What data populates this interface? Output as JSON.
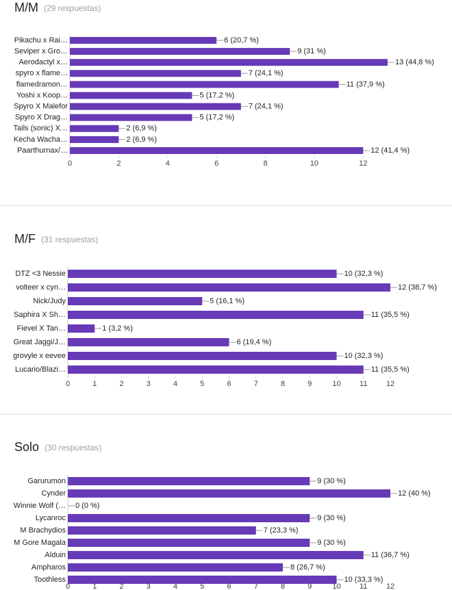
{
  "chart_data": [
    {
      "type": "barh",
      "title": "M/M",
      "subtitle": "(29 respuestas)",
      "categories": [
        "Pikachu x Rai…",
        "Seviper x Gro…",
        "Aerodactyl x…",
        "spyro x flame…",
        "flamedramon…",
        "Yoshi x Koop…",
        "Spyro X Malefor",
        "Spyro X Drag…",
        "Tails (sonic) X…",
        "Kecha Wacha…",
        "Paarthurnax/…"
      ],
      "values": [
        6,
        9,
        13,
        7,
        11,
        5,
        7,
        5,
        2,
        2,
        12
      ],
      "value_labels": [
        "6 (20,7 %)",
        "9 (31 %)",
        "13 (44,8 %)",
        "7 (24,1 %)",
        "11 (37,9 %)",
        "5 (17,2 %)",
        "7 (24,1 %)",
        "5 (17,2 %)",
        "2 (6,9 %)",
        "2 (6,9 %)",
        "12 (41,4 %)"
      ],
      "color": "#673ab7",
      "xlim": [
        0,
        13
      ],
      "xticks": [
        0,
        2,
        4,
        6,
        8,
        10,
        12
      ]
    },
    {
      "type": "barh",
      "title": "M/F",
      "subtitle": "(31 respuestas)",
      "categories": [
        "DTZ <3 Nessie",
        "volteer x cyn…",
        "Nick/Judy",
        "Saphira X Sh…",
        "Fievel X Tan…",
        "Great Jaggi/J…",
        "grovyle x eevee",
        "Lucario/Blazi…"
      ],
      "values": [
        10,
        12,
        5,
        11,
        1,
        6,
        10,
        11
      ],
      "value_labels": [
        "10 (32,3 %)",
        "12 (38,7 %)",
        "5 (16,1 %)",
        "11 (35,5 %)",
        "1 (3,2 %)",
        "6 (19,4 %)",
        "10 (32,3 %)",
        "11 (35,5 %)"
      ],
      "color": "#673ab7",
      "xlim": [
        0,
        12
      ],
      "xticks": [
        0,
        1,
        2,
        3,
        4,
        5,
        6,
        7,
        8,
        9,
        10,
        11,
        12
      ]
    },
    {
      "type": "barh",
      "title": "Solo",
      "subtitle": "(30 respuestas)",
      "categories": [
        "Garurumon",
        "Cynder",
        "Winnie Wolf (…",
        "Lycanroc",
        "M Brachydios",
        "M Gore Magala",
        "Alduin",
        "Ampharos",
        "Toothless"
      ],
      "values": [
        9,
        12,
        0,
        9,
        7,
        9,
        11,
        8,
        10
      ],
      "value_labels": [
        "9 (30 %)",
        "12 (40 %)",
        "0 (0 %)",
        "9 (30 %)",
        "7 (23,3 %)",
        "9 (30 %)",
        "11 (36,7 %)",
        "8 (26,7 %)",
        "10 (33,3 %)"
      ],
      "color": "#673ab7",
      "xlim": [
        0,
        12
      ],
      "xticks": [
        0,
        1,
        2,
        3,
        4,
        5,
        6,
        7,
        8,
        9,
        10,
        11,
        12
      ]
    }
  ]
}
